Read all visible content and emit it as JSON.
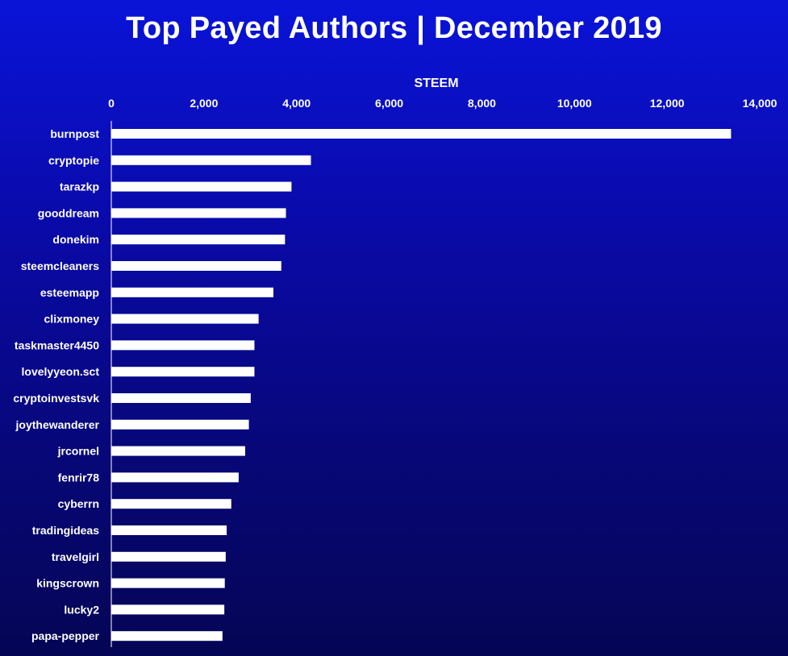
{
  "chart_data": {
    "type": "bar",
    "orientation": "horizontal",
    "title": "Top Payed Authors | December 2019",
    "xlabel": "STEEM",
    "ylabel": "",
    "xlim": [
      0,
      14000
    ],
    "x_ticks": [
      "0",
      "2,000",
      "4,000",
      "6,000",
      "8,000",
      "10,000",
      "12,000",
      "14,000"
    ],
    "x_tick_values": [
      0,
      2000,
      4000,
      6000,
      8000,
      10000,
      12000,
      14000
    ],
    "x_axis_position": "top",
    "grid": false,
    "legend": "none",
    "bar_color": "#ffffff",
    "categories": [
      "burnpost",
      "cryptopie",
      "tarazkp",
      "gooddream",
      "donekim",
      "steemcleaners",
      "esteemapp",
      "clixmoney",
      "taskmaster4450",
      "lovelyyeon.sct",
      "cryptoinvestsvk",
      "joythewanderer",
      "jrcornel",
      "fenrir78",
      "cyberrn",
      "tradingideas",
      "travelgirl",
      "kingscrown",
      "lucky2",
      "papa-pepper"
    ],
    "values": [
      13380,
      4310,
      3890,
      3770,
      3750,
      3670,
      3500,
      3180,
      3090,
      3090,
      3010,
      2970,
      2890,
      2750,
      2590,
      2490,
      2470,
      2450,
      2440,
      2400
    ]
  }
}
